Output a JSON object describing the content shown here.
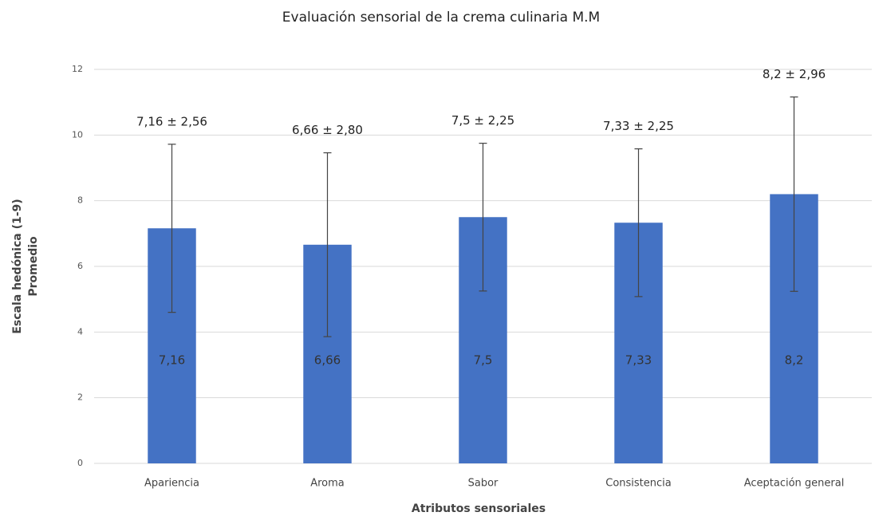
{
  "chart_data": {
    "type": "bar",
    "title": "Evaluación sensorial de la crema culinaria M.M",
    "x_label": "Atributos sensoriales",
    "y_label": [
      "Escala hedónica (1-9)",
      "Promedio"
    ],
    "categories": [
      "Apariencia",
      "Aroma",
      "Sabor",
      "Consistencia",
      "Aceptación general"
    ],
    "values": [
      7.16,
      6.66,
      7.5,
      7.33,
      8.2
    ],
    "value_labels": [
      "7,16",
      "6,66",
      "7,5",
      "7,33",
      "8,2"
    ],
    "errors": [
      2.56,
      2.8,
      2.25,
      2.25,
      2.96
    ],
    "error_labels": [
      "7,16 ± 2,56",
      "6,66 ± 2,80",
      "7,5 ± 2,25",
      "7,33 ± 2,25",
      "8,2 ± 2,96"
    ],
    "color": "#4472c4",
    "ylim": [
      0,
      12
    ],
    "yticks": [
      0,
      2,
      4,
      6,
      8,
      10,
      12
    ],
    "grid": true
  }
}
